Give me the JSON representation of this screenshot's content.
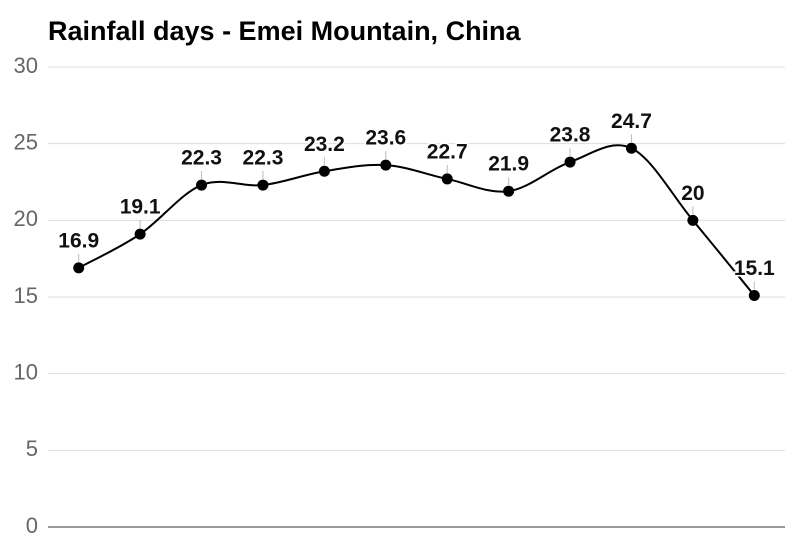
{
  "chart_data": {
    "type": "line",
    "title": "Rainfall days - Emei Mountain, China",
    "categories": [
      null,
      null,
      null,
      null,
      null,
      null,
      null,
      null,
      null,
      null,
      null,
      null
    ],
    "values": [
      16.9,
      19.1,
      22.3,
      22.3,
      23.2,
      23.6,
      22.7,
      21.9,
      23.8,
      24.7,
      20,
      15.1
    ],
    "color": "#000000",
    "ylim": [
      0,
      30
    ],
    "yticks": [
      0,
      5,
      10,
      15,
      20,
      25,
      30
    ],
    "grid": true
  }
}
